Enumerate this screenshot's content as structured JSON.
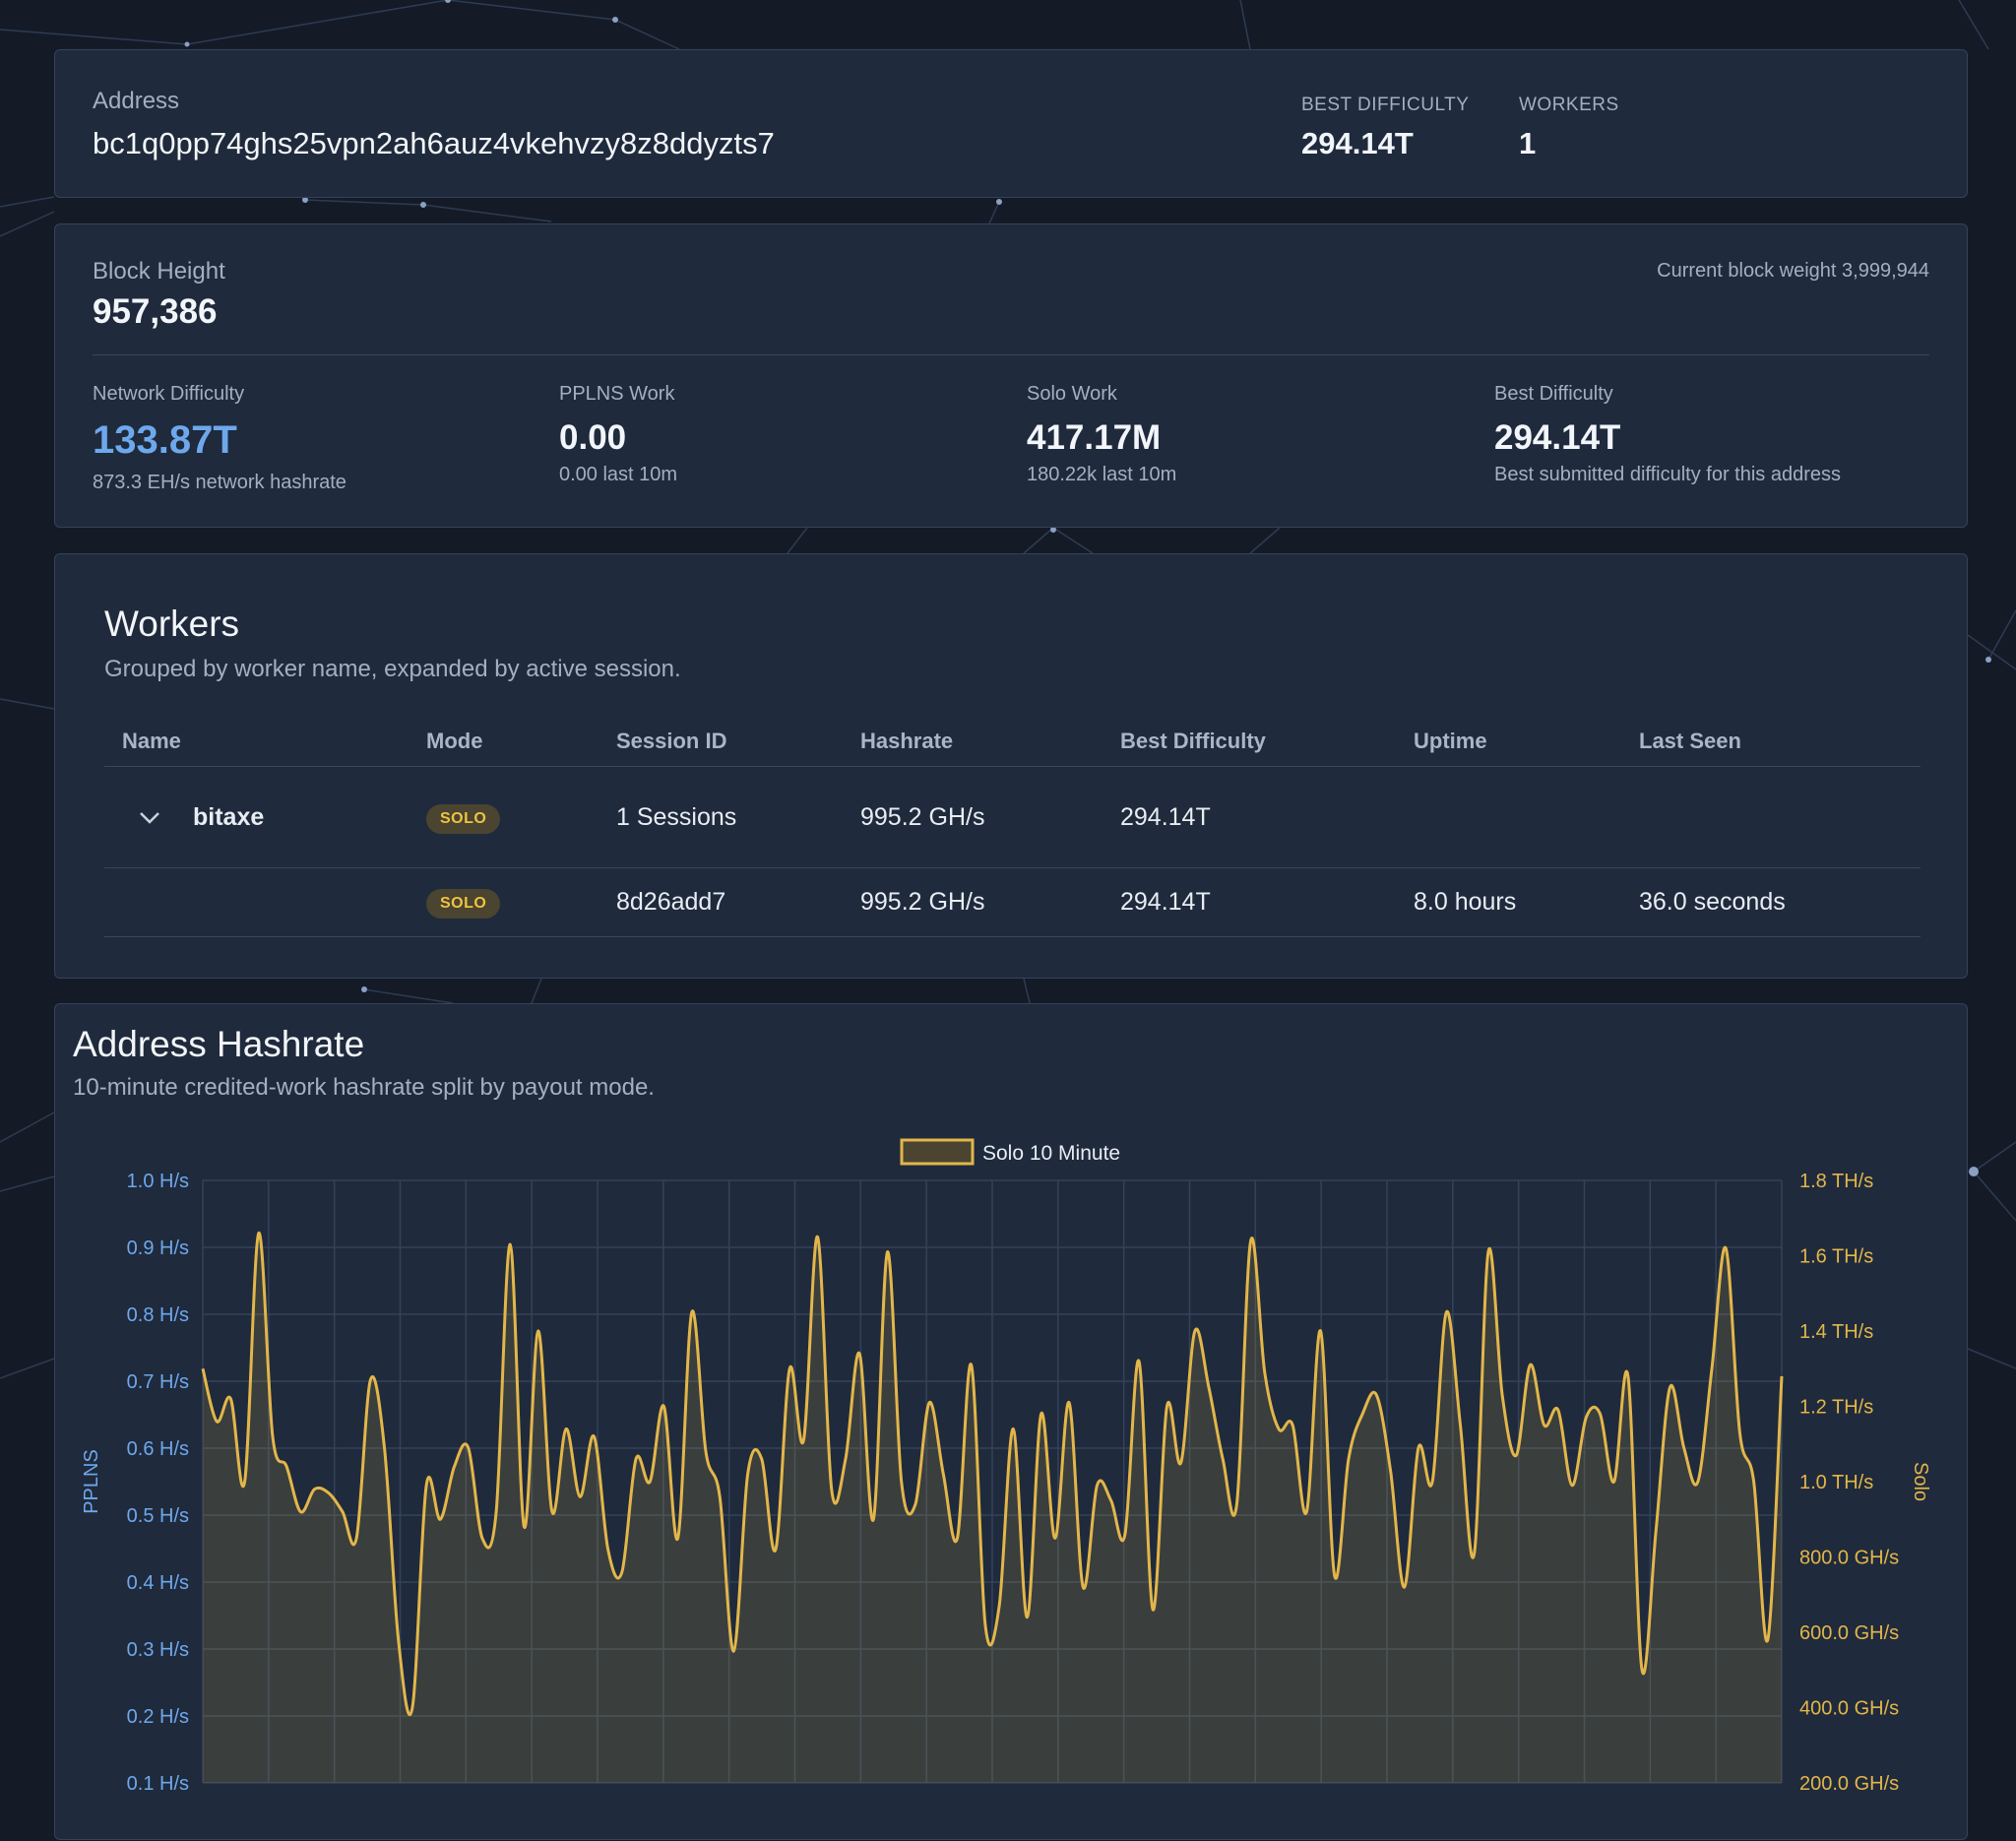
{
  "address_panel": {
    "label": "Address",
    "value": "bc1q0pp74ghs25vpn2ah6auz4vkehvzy8z8ddyzts7",
    "best_difficulty_label": "BEST DIFFICULTY",
    "best_difficulty_value": "294.14T",
    "workers_label": "WORKERS",
    "workers_value": "1"
  },
  "block_panel": {
    "height_label": "Block Height",
    "height_value": "957,386",
    "weight_text": "Current block weight 3,999,944",
    "stats": [
      {
        "label": "Network Difficulty",
        "value": "133.87T",
        "sub": "873.3 EH/s network hashrate"
      },
      {
        "label": "PPLNS Work",
        "value": "0.00",
        "sub": "0.00 last 10m"
      },
      {
        "label": "Solo Work",
        "value": "417.17M",
        "sub": "180.22k last 10m"
      },
      {
        "label": "Best Difficulty",
        "value": "294.14T",
        "sub": "Best submitted difficulty for this address"
      }
    ]
  },
  "workers_panel": {
    "title": "Workers",
    "subtitle": "Grouped by worker name, expanded by active session.",
    "columns": [
      "Name",
      "Mode",
      "Session ID",
      "Hashrate",
      "Best Difficulty",
      "Uptime",
      "Last Seen"
    ],
    "group": {
      "name": "bitaxe",
      "mode": "SOLO",
      "session": "1 Sessions",
      "hashrate": "995.2 GH/s",
      "best_difficulty": "294.14T"
    },
    "sessions": [
      {
        "mode": "SOLO",
        "session_id": "8d26add7",
        "hashrate": "995.2 GH/s",
        "best_difficulty": "294.14T",
        "uptime": "8.0 hours",
        "last_seen": "36.0 seconds"
      }
    ]
  },
  "chart_panel": {
    "title": "Address Hashrate",
    "subtitle": "10-minute credited-work hashrate split by payout mode."
  },
  "colors": {
    "accent_blue": "#6ea8ec",
    "solo_gold": "#e2b64a",
    "panel_bg": "#1f2a3c",
    "page_bg": "#141b27"
  },
  "chart_data": {
    "type": "area",
    "legend": [
      "Solo 10 Minute"
    ],
    "legend_position": "top",
    "grid": true,
    "y_left": {
      "label": "PPLNS",
      "ticks": [
        "1.0 H/s",
        "0.9 H/s",
        "0.8 H/s",
        "0.7 H/s",
        "0.6 H/s",
        "0.5 H/s",
        "0.4 H/s",
        "0.3 H/s",
        "0.2 H/s",
        "0.1 H/s"
      ],
      "range": [
        0.1,
        1.0
      ]
    },
    "y_right": {
      "label": "Solo",
      "ticks": [
        "1.8 TH/s",
        "1.6 TH/s",
        "1.4 TH/s",
        "1.2 TH/s",
        "1.0 TH/s",
        "800.0 GH/s",
        "600.0 GH/s",
        "400.0 GH/s",
        "200.0 GH/s"
      ],
      "range_ghs": [
        200,
        1800
      ]
    },
    "series": [
      {
        "name": "Solo 10 Minute",
        "unit": "GH/s",
        "values": [
          1300,
          1160,
          1220,
          1000,
          1660,
          1120,
          1040,
          920,
          980,
          970,
          920,
          850,
          1270,
          1090,
          580,
          400,
          990,
          900,
          1040,
          1090,
          850,
          920,
          1630,
          880,
          1400,
          920,
          1140,
          960,
          1120,
          820,
          760,
          1060,
          1000,
          1200,
          850,
          1450,
          1080,
          960,
          550,
          1020,
          1060,
          820,
          1300,
          1110,
          1650,
          980,
          1060,
          1340,
          900,
          1610,
          1000,
          940,
          1210,
          1020,
          850,
          1310,
          620,
          670,
          1140,
          640,
          1180,
          850,
          1210,
          720,
          990,
          950,
          860,
          1320,
          660,
          1200,
          1050,
          1400,
          1250,
          1060,
          940,
          1640,
          1290,
          1140,
          1150,
          920,
          1400,
          750,
          1060,
          1180,
          1230,
          1030,
          720,
          1090,
          1000,
          1450,
          1150,
          810,
          1610,
          1230,
          1070,
          1310,
          1150,
          1190,
          990,
          1170,
          1180,
          1000,
          1280,
          500,
          870,
          1250,
          1090,
          1000,
          1300,
          1620,
          1130,
          1000,
          580,
          1280
        ]
      }
    ]
  }
}
